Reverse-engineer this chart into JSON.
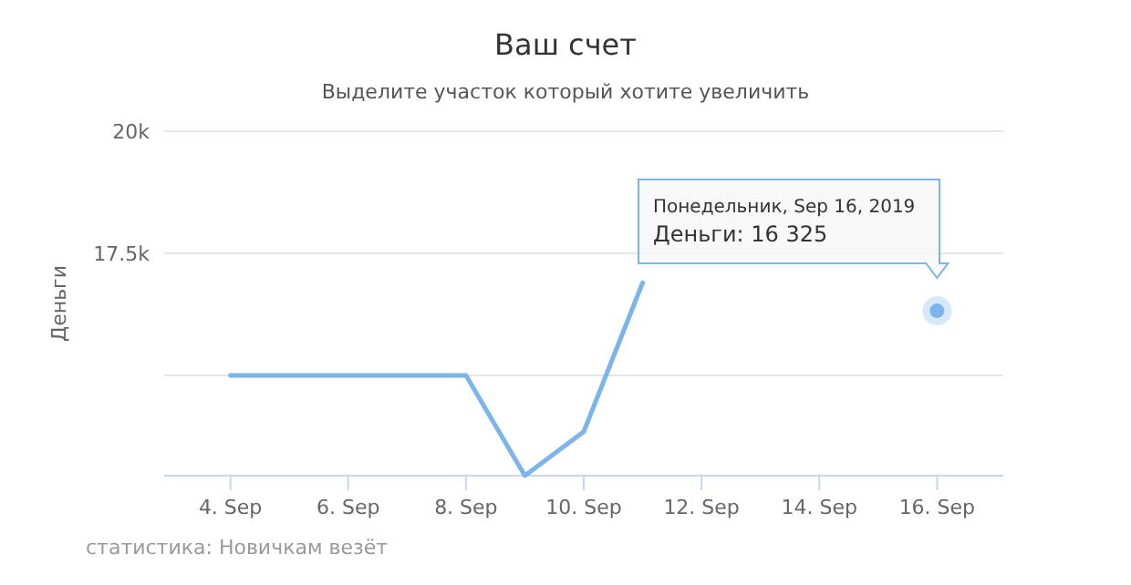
{
  "chart_data": {
    "type": "line",
    "title": "Ваш счет",
    "subtitle": "Выделите участок который хотите увеличить",
    "ylabel": "Деньги",
    "x": [
      "2019-09-04",
      "2019-09-05",
      "2019-09-06",
      "2019-09-07",
      "2019-09-08",
      "2019-09-09",
      "2019-09-10",
      "2019-09-11",
      "2019-09-12",
      "2019-09-13",
      "2019-09-14",
      "2019-09-15",
      "2019-09-16"
    ],
    "series": [
      {
        "color": "#7cb5ec",
        "values": [
          15000,
          15000,
          15000,
          15000,
          15000,
          12950,
          13850,
          16900,
          null,
          null,
          null,
          null,
          16325
        ]
      }
    ],
    "xlim": [
      "2019-09-02T21:00",
      "2019-09-17T03:00"
    ],
    "xticks": [
      {
        "value": "2019-09-04",
        "label": "4. Sep"
      },
      {
        "value": "2019-09-06",
        "label": "6. Sep"
      },
      {
        "value": "2019-09-08",
        "label": "8. Sep"
      },
      {
        "value": "2019-09-10",
        "label": "10. Sep"
      },
      {
        "value": "2019-09-12",
        "label": "12. Sep"
      },
      {
        "value": "2019-09-14",
        "label": "14. Sep"
      },
      {
        "value": "2019-09-16",
        "label": "16. Sep"
      }
    ],
    "ylim": [
      12950,
      20000
    ],
    "yticks": [
      {
        "value": 15000,
        "label": null
      },
      {
        "value": 17500,
        "label": "17.5k"
      },
      {
        "value": 20000,
        "label": "20k"
      }
    ],
    "grid": "y",
    "marker": "none",
    "line_style": "solid",
    "annotations": [
      "Понедельник, Sep 16, 2019\nДеньги: 16 325",
      "статистика: Новичкам везёт"
    ]
  }
}
